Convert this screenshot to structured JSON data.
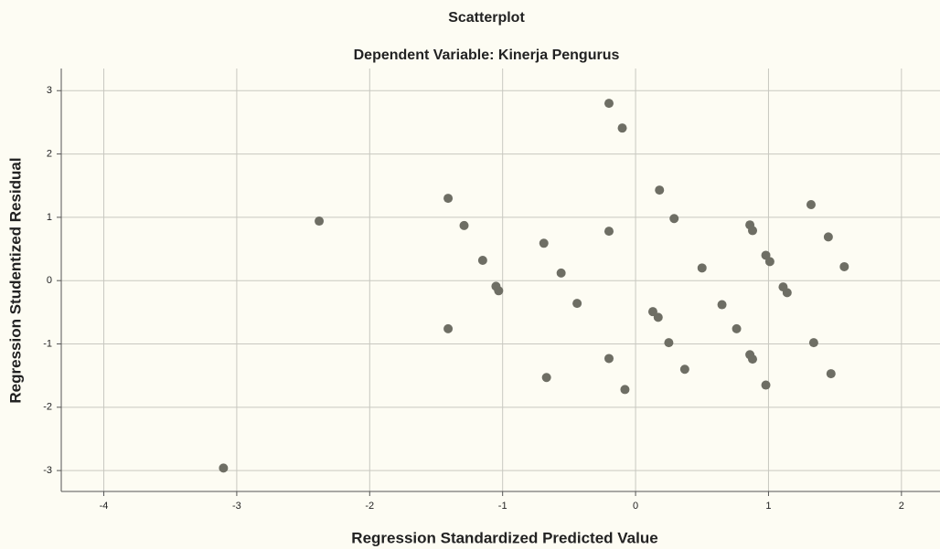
{
  "chart_data": {
    "type": "scatter",
    "title": "Scatterplot",
    "subtitle": "Dependent Variable: Kinerja Pengurus",
    "x_label": "Regression Standardized Predicted Value",
    "y_label": "Regression Studentized Residual",
    "x": [
      -2.38,
      -1.41,
      -1.29,
      -1.41,
      -1.15,
      -1.05,
      -1.03,
      -0.69,
      -0.56,
      -0.44,
      -0.67,
      -0.2,
      -0.1,
      -0.2,
      -0.2,
      -0.08,
      0.18,
      0.29,
      0.13,
      0.17,
      0.25,
      0.37,
      0.5,
      0.65,
      0.76,
      0.86,
      0.88,
      0.86,
      0.88,
      0.98,
      1.01,
      0.98,
      1.11,
      1.14,
      1.32,
      1.45,
      1.34,
      1.47,
      1.57,
      -3.1
    ],
    "values": [
      0.94,
      1.3,
      0.87,
      -0.76,
      0.32,
      -0.09,
      -0.16,
      0.59,
      0.12,
      -0.36,
      -1.53,
      2.8,
      2.41,
      0.78,
      -1.23,
      -1.72,
      1.43,
      0.98,
      -0.49,
      -0.58,
      -0.98,
      -1.4,
      0.2,
      -0.38,
      -0.76,
      0.88,
      0.79,
      -1.17,
      -1.24,
      0.4,
      0.3,
      -1.65,
      -0.1,
      -0.19,
      1.2,
      0.69,
      -0.98,
      -1.47,
      0.22,
      -2.96
    ],
    "color": "#6e6e64",
    "xlim": [
      -4.32,
      2.29
    ],
    "ylim": [
      -3.33,
      3.35
    ],
    "xticks": [
      -4,
      -3,
      -2,
      -1,
      0,
      1,
      2
    ],
    "yticks": [
      -3,
      -2,
      -1,
      0,
      1,
      2,
      3
    ],
    "grid": true
  }
}
